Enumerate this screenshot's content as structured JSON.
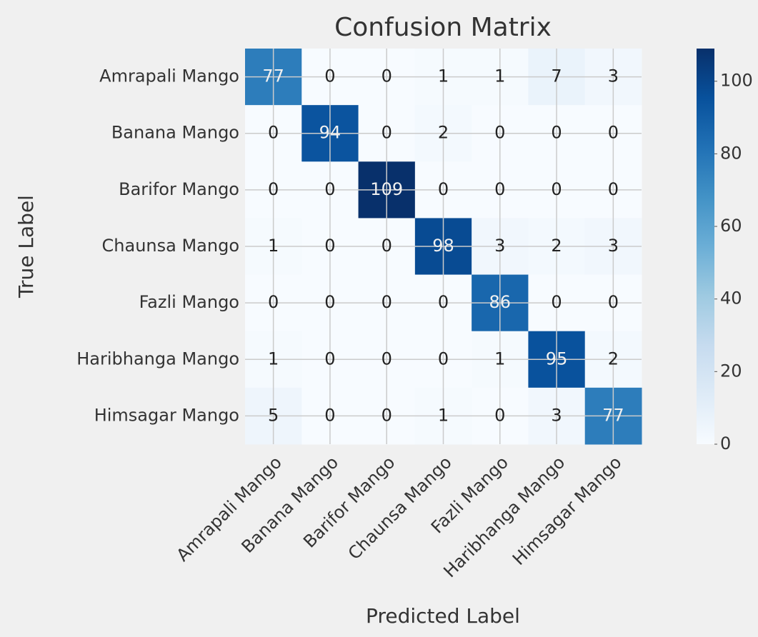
{
  "chart_data": {
    "type": "heatmap",
    "title": "Confusion Matrix",
    "x_label": "Predicted Label",
    "y_label": "True Label",
    "x_categories": [
      "Amrapali Mango",
      "Banana Mango",
      "Barifor Mango",
      "Chaunsa Mango",
      "Fazli Mango",
      "Haribhanga Mango",
      "Himsagar Mango"
    ],
    "y_categories": [
      "Amrapali Mango",
      "Banana Mango",
      "Barifor Mango",
      "Chaunsa Mango",
      "Fazli Mango",
      "Haribhanga Mango",
      "Himsagar Mango"
    ],
    "values": [
      [
        77,
        0,
        0,
        1,
        1,
        7,
        3
      ],
      [
        0,
        94,
        0,
        2,
        0,
        0,
        0
      ],
      [
        0,
        0,
        109,
        0,
        0,
        0,
        0
      ],
      [
        1,
        0,
        0,
        98,
        3,
        2,
        3
      ],
      [
        0,
        0,
        0,
        0,
        86,
        0,
        0
      ],
      [
        1,
        0,
        0,
        0,
        1,
        95,
        2
      ],
      [
        5,
        0,
        0,
        1,
        0,
        3,
        77
      ]
    ],
    "colormap": "Blues",
    "clim": [
      0,
      109
    ],
    "cticks": [
      0,
      20,
      40,
      60,
      80,
      100
    ],
    "grid": true
  }
}
